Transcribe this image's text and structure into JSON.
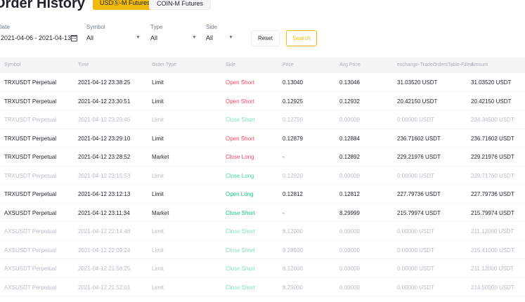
{
  "header": {
    "title": "Order History",
    "tabs": [
      {
        "label": "USDⓈ-M Futures",
        "active": true
      },
      {
        "label": "COIN-M Futures",
        "active": false
      }
    ]
  },
  "filters": {
    "date": {
      "label": "Date",
      "value": "2021-04-06 - 2021-04-13"
    },
    "symbol": {
      "label": "Symbol",
      "value": "All"
    },
    "type": {
      "label": "Type",
      "value": "All"
    },
    "side": {
      "label": "Side",
      "value": "All"
    },
    "reset_label": "Reset",
    "search_label": "Search"
  },
  "colors": {
    "accent": "#f0b90b",
    "short": "#f6465d",
    "long": "#0ecb81"
  },
  "table": {
    "columns": [
      "Symbol",
      "Time",
      "Order Type",
      "Side",
      "Price",
      "Avg Price",
      "exchange-TradeOrdersTable-Filled",
      "Amount"
    ],
    "rows": [
      {
        "symbol": "TRXUSDT Perpetual",
        "time": "2021-04-12 23:38:25",
        "type": "Limit",
        "side": "Open Short",
        "price": "0.13040",
        "avg": "0.13046",
        "filled": "31.03520 USDT",
        "amount": "31.03520 USDT",
        "faded": false
      },
      {
        "symbol": "TRXUSDT Perpetual",
        "time": "2021-04-12 23:30:51",
        "type": "Limit",
        "side": "Open Short",
        "price": "0.12925",
        "avg": "0.12932",
        "filled": "20.42150 USDT",
        "amount": "20.42150 USDT",
        "faded": false
      },
      {
        "symbol": "TRXUSDT Perpetual",
        "time": "2021-04-12 23:29:46",
        "type": "Limit",
        "side": "Close Short",
        "price": "0.12750",
        "avg": "0.00000",
        "filled": "0.00000 USDT",
        "amount": "234.34500 USDT",
        "faded": true
      },
      {
        "symbol": "TRXUSDT Perpetual",
        "time": "2021-04-12 23:29:10",
        "type": "Limit",
        "side": "Open Short",
        "price": "0.12879",
        "avg": "0.12884",
        "filled": "236.71602 USDT",
        "amount": "236.71602 USDT",
        "faded": false
      },
      {
        "symbol": "TRXUSDT Perpetual",
        "time": "2021-04-12 23:28:52",
        "type": "Market",
        "side": "Close Long",
        "price": "-",
        "avg": "0.12892",
        "filled": "229.21976 USDT",
        "amount": "229.21976 USDT",
        "faded": false
      },
      {
        "symbol": "TRXUSDT Perpetual",
        "time": "2021-04-12 23:15:53",
        "type": "Limit",
        "side": "Close Long",
        "price": "0.12920",
        "avg": "0.00000",
        "filled": "0.00000 USDT",
        "amount": "229.71760 USDT",
        "faded": true
      },
      {
        "symbol": "TRXUSDT Perpetual",
        "time": "2021-04-12 23:12:13",
        "type": "Limit",
        "side": "Open Long",
        "price": "0.12812",
        "avg": "0.12812",
        "filled": "227.79736 USDT",
        "amount": "227.79736 USDT",
        "faded": false
      },
      {
        "symbol": "AXSUSDT Perpetual",
        "time": "2021-04-12 23:11:34",
        "type": "Market",
        "side": "Close Short",
        "price": "-",
        "avg": "8.29999",
        "filled": "215.79974 USDT",
        "amount": "215.79974 USDT",
        "faded": false
      },
      {
        "symbol": "AXSUSDT Perpetual",
        "time": "2021-04-12 22:14:48",
        "type": "Limit",
        "side": "Close Short",
        "price": "8.12000",
        "avg": "0.00000",
        "filled": "0.00000 USDT",
        "amount": "211.12000 USDT",
        "faded": true
      },
      {
        "symbol": "AXSUSDT Perpetual",
        "time": "2021-04-12 22:09:24",
        "type": "Limit",
        "side": "Close Short",
        "price": "8.28500",
        "avg": "0.00000",
        "filled": "0.00000 USDT",
        "amount": "215.41000 USDT",
        "faded": true
      },
      {
        "symbol": "AXSUSDT Perpetual",
        "time": "2021-04-12 21:58:25",
        "type": "Limit",
        "side": "Close Short",
        "price": "8.12000",
        "avg": "0.00000",
        "filled": "0.00000 USDT",
        "amount": "211.12000 USDT",
        "faded": true
      },
      {
        "symbol": "AXSUSDT Perpetual",
        "time": "2021-04-12 21:52:01",
        "type": "Limit",
        "side": "Close Short",
        "price": "8.25000",
        "avg": "0.00000",
        "filled": "0.00000 USDT",
        "amount": "214.50000 USDT",
        "faded": true
      }
    ]
  }
}
